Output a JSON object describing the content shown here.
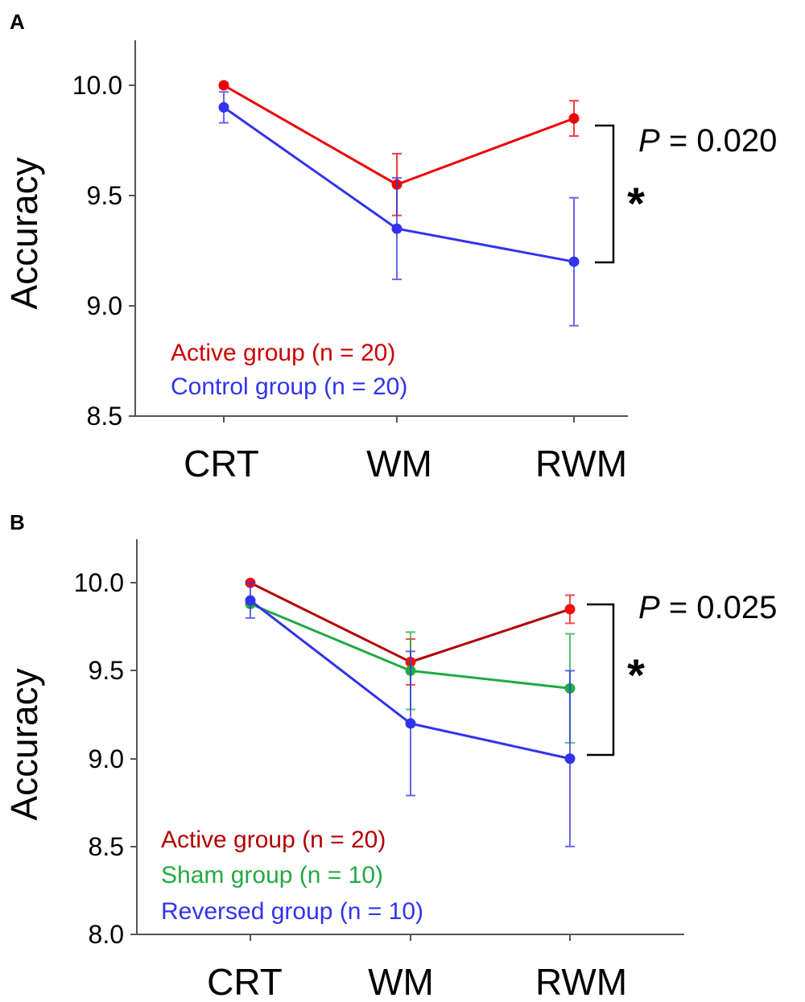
{
  "chart_data": [
    {
      "panel": "A",
      "type": "line",
      "categories": [
        "CRT",
        "WM",
        "RWM"
      ],
      "ylabel": "Accuracy",
      "ylim": [
        8.5,
        10.2
      ],
      "yticks": [
        "8.5",
        "9.0",
        "9.5",
        "10.0"
      ],
      "series": [
        {
          "name": "Active group (n = 20)",
          "color": "#ee0000",
          "values": [
            10.0,
            9.55,
            9.85
          ],
          "err_low": [
            10.0,
            9.41,
            9.77
          ],
          "err_high": [
            10.0,
            9.69,
            9.93
          ]
        },
        {
          "name": "Control group (n = 20)",
          "color": "#3333ee",
          "values": [
            9.9,
            9.35,
            9.2
          ],
          "err_low": [
            9.83,
            9.12,
            8.91
          ],
          "err_high": [
            9.97,
            9.58,
            9.49
          ]
        }
      ],
      "annotation": {
        "p_label": "P",
        "p_value": "= 0.020",
        "significance": "*"
      }
    },
    {
      "panel": "B",
      "type": "line",
      "categories": [
        "CRT",
        "WM",
        "RWM"
      ],
      "ylabel": "Accuracy",
      "ylim": [
        8.0,
        10.25
      ],
      "yticks": [
        "8.0",
        "8.5",
        "9.0",
        "9.5",
        "10.0"
      ],
      "series": [
        {
          "name": "Active group (n = 20)",
          "line_color": "#b30000",
          "point_color": "#ee1111",
          "values": [
            10.0,
            9.55,
            9.85
          ],
          "err_low": [
            10.0,
            9.42,
            9.77
          ],
          "err_high": [
            10.0,
            9.68,
            9.93
          ]
        },
        {
          "name": "Sham group (n = 10)",
          "line_color": "#22aa44",
          "point_color": "#22aa44",
          "values": [
            9.88,
            9.5,
            9.4
          ],
          "err_low": [
            9.88,
            9.28,
            9.09
          ],
          "err_high": [
            9.88,
            9.72,
            9.71
          ]
        },
        {
          "name": "Reversed group (n = 10)",
          "line_color": "#3333ee",
          "point_color": "#3333ee",
          "values": [
            9.9,
            9.2,
            9.0
          ],
          "err_low": [
            9.8,
            8.79,
            8.5
          ],
          "err_high": [
            10.0,
            9.61,
            9.5
          ]
        }
      ],
      "annotation": {
        "p_label": "P",
        "p_value": "= 0.025",
        "significance": "*"
      }
    }
  ],
  "legend_colors": {
    "active": "#cc0000",
    "control": "#3333ee",
    "sham": "#22aa44",
    "reversed": "#3333ee"
  }
}
